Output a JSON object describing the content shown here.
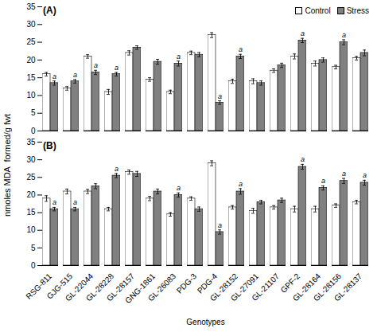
{
  "chart_data": [
    {
      "type": "bar",
      "title": "(A)",
      "categories": [
        "RSG-811",
        "GJG-515",
        "GL-22044",
        "GL-28228",
        "GL-28157",
        "GNG-1861",
        "GL-26083",
        "PDG-3",
        "PDG-4",
        "GL-28152",
        "GL-27091",
        "GL-21107",
        "GPF-2",
        "GL-28164",
        "GL-28156",
        "GL-28137"
      ],
      "series": [
        {
          "name": "Control",
          "color": "white",
          "values": [
            16,
            12,
            21,
            11,
            22,
            14.5,
            11,
            22,
            27,
            14,
            14,
            17,
            21,
            19,
            18,
            20.5
          ],
          "errors": [
            0.5,
            0.5,
            0.5,
            0.7,
            0.6,
            0.5,
            0.5,
            0.5,
            0.7,
            0.6,
            0.7,
            0.5,
            0.7,
            0.7,
            0.5,
            0.5
          ]
        },
        {
          "name": "Stress",
          "color": "#808080",
          "values": [
            13.5,
            14,
            16.5,
            16,
            23.5,
            19.5,
            19,
            21.5,
            8,
            21,
            13.5,
            18.5,
            25.5,
            20,
            25,
            22
          ],
          "errors": [
            0.6,
            0.5,
            0.6,
            0.5,
            0.5,
            0.7,
            0.7,
            0.6,
            0.5,
            0.6,
            0.6,
            0.6,
            0.6,
            0.6,
            0.7,
            0.8
          ]
        }
      ],
      "annotations": [
        {
          "text": "a",
          "category": "RSG-811",
          "series": "Stress"
        },
        {
          "text": "a",
          "category": "GJG-515",
          "series": "Stress"
        },
        {
          "text": "a",
          "category": "GL-22044",
          "series": "Stress"
        },
        {
          "text": "a",
          "category": "GL-28228",
          "series": "Stress"
        },
        {
          "text": "a",
          "category": "GL-26083",
          "series": "Stress"
        },
        {
          "text": "a",
          "category": "PDG-4",
          "series": "Stress"
        },
        {
          "text": "a",
          "category": "GL-28152",
          "series": "Stress"
        },
        {
          "text": "a",
          "category": "GPF-2",
          "series": "Stress"
        },
        {
          "text": "a",
          "category": "GL-28156",
          "series": "Stress"
        }
      ],
      "ylabel": "nmoles MDA  formed/g fwt",
      "ylim": [
        0,
        35
      ],
      "yticks": [
        0,
        5,
        10,
        15,
        20,
        25,
        30,
        35
      ],
      "grid": false,
      "legend": "upper right",
      "tick_labels": "y"
    },
    {
      "type": "bar",
      "title": "(B)",
      "categories": [
        "RSG-811",
        "GJG-515",
        "GL-22044",
        "GL-28228",
        "GL-28157",
        "GNG-1861",
        "GL-26083",
        "PDG-3",
        "PDG-4",
        "GL-28152",
        "GL-27091",
        "GL-21107",
        "GPF-2",
        "GL-28164",
        "GL-28156",
        "GL-28137"
      ],
      "series": [
        {
          "name": "Control",
          "color": "white",
          "values": [
            19,
            21,
            21,
            16,
            26.5,
            19,
            14.5,
            19,
            29,
            16.5,
            15.5,
            16.5,
            16,
            16,
            17,
            18
          ],
          "errors": [
            0.8,
            0.7,
            0.6,
            0.5,
            0.6,
            0.6,
            0.5,
            0.5,
            0.7,
            0.5,
            0.7,
            0.5,
            0.8,
            0.8,
            0.5,
            0.5
          ]
        },
        {
          "name": "Stress",
          "color": "#808080",
          "values": [
            16,
            16,
            22.5,
            25.5,
            26,
            21,
            20,
            16,
            9.5,
            21,
            18,
            18.5,
            28,
            22,
            24,
            23.5
          ],
          "errors": [
            0.5,
            0.5,
            0.7,
            0.6,
            0.7,
            0.7,
            0.6,
            0.6,
            0.6,
            0.8,
            0.5,
            0.6,
            0.7,
            0.6,
            0.7,
            0.7
          ]
        }
      ],
      "annotations": [
        {
          "text": "a",
          "category": "RSG-811",
          "series": "Stress"
        },
        {
          "text": "a",
          "category": "GJG-515",
          "series": "Stress"
        },
        {
          "text": "a",
          "category": "GL-28228",
          "series": "Stress"
        },
        {
          "text": "a",
          "category": "GL-26083",
          "series": "Stress"
        },
        {
          "text": "a",
          "category": "PDG-4",
          "series": "Stress"
        },
        {
          "text": "a",
          "category": "GL-28152",
          "series": "Stress"
        },
        {
          "text": "a",
          "category": "GPF-2",
          "series": "Stress"
        },
        {
          "text": "a",
          "category": "GL-28164",
          "series": "Stress"
        },
        {
          "text": "a",
          "category": "GL-28156",
          "series": "Stress"
        },
        {
          "text": "a",
          "category": "GL-28137",
          "series": "Stress"
        }
      ],
      "xlabel": "Genotypes",
      "ylim": [
        0,
        35
      ],
      "yticks": [
        0,
        5,
        10,
        15,
        20,
        25,
        30,
        35
      ],
      "grid": false
    }
  ]
}
